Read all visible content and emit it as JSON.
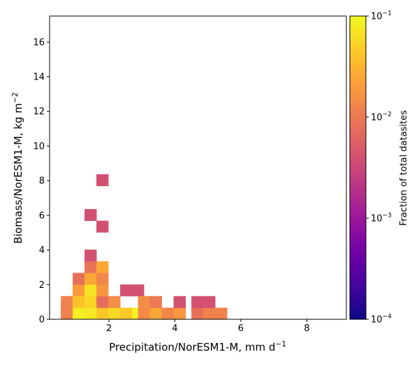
{
  "chart_data": {
    "type": "heatmap",
    "title": "",
    "xlabel": "Precipitation/NorESM1-M,  mm d",
    "xlabel_sup": "−1",
    "ylabel": "Biomass/NorESM1-M,  kg m",
    "ylabel_sup": "−2",
    "xlim": [
      0.2,
      9.2
    ],
    "ylim": [
      0,
      17.5
    ],
    "xticks": [
      2,
      4,
      6,
      8
    ],
    "xtick_labels": [
      "2",
      "4",
      "6",
      "8"
    ],
    "yticks": [
      0,
      2,
      4,
      6,
      8,
      10,
      12,
      14,
      16
    ],
    "ytick_labels": [
      "0",
      "2",
      "4",
      "6",
      "8",
      "10",
      "12",
      "14",
      "16"
    ],
    "grid": false,
    "bin_width_x": 0.36,
    "bin_height_y": 0.67,
    "cells": [
      {
        "x": 0.54,
        "y": 0.0,
        "v": 0.012
      },
      {
        "x": 0.54,
        "y": 0.67,
        "v": 0.012
      },
      {
        "x": 0.9,
        "y": 0.0,
        "v": 0.085
      },
      {
        "x": 0.9,
        "y": 0.67,
        "v": 0.04
      },
      {
        "x": 0.9,
        "y": 1.34,
        "v": 0.02
      },
      {
        "x": 0.9,
        "y": 2.01,
        "v": 0.008
      },
      {
        "x": 1.26,
        "y": 0.0,
        "v": 0.075
      },
      {
        "x": 1.26,
        "y": 0.67,
        "v": 0.055
      },
      {
        "x": 1.26,
        "y": 1.34,
        "v": 0.07
      },
      {
        "x": 1.26,
        "y": 2.01,
        "v": 0.025
      },
      {
        "x": 1.26,
        "y": 2.68,
        "v": 0.009
      },
      {
        "x": 1.26,
        "y": 3.35,
        "v": 0.004
      },
      {
        "x": 1.26,
        "y": 5.69,
        "v": 0.004
      },
      {
        "x": 1.62,
        "y": 0.0,
        "v": 0.045
      },
      {
        "x": 1.62,
        "y": 0.67,
        "v": 0.008
      },
      {
        "x": 1.62,
        "y": 1.34,
        "v": 0.018
      },
      {
        "x": 1.62,
        "y": 2.01,
        "v": 0.013
      },
      {
        "x": 1.62,
        "y": 2.68,
        "v": 0.025
      },
      {
        "x": 1.62,
        "y": 5.02,
        "v": 0.004
      },
      {
        "x": 1.62,
        "y": 7.7,
        "v": 0.004
      },
      {
        "x": 1.98,
        "y": 0.0,
        "v": 0.06
      },
      {
        "x": 1.98,
        "y": 0.67,
        "v": 0.015
      },
      {
        "x": 2.34,
        "y": 0.0,
        "v": 0.045
      },
      {
        "x": 2.34,
        "y": 1.34,
        "v": 0.004
      },
      {
        "x": 2.7,
        "y": 0.0,
        "v": 0.09
      },
      {
        "x": 2.7,
        "y": 1.34,
        "v": 0.004
      },
      {
        "x": 2.88,
        "y": 0.0,
        "v": 0.014
      },
      {
        "x": 2.88,
        "y": 0.67,
        "v": 0.015
      },
      {
        "x": 3.24,
        "y": 0.0,
        "v": 0.025
      },
      {
        "x": 3.24,
        "y": 0.67,
        "v": 0.01
      },
      {
        "x": 3.6,
        "y": 0.0,
        "v": 0.013
      },
      {
        "x": 3.96,
        "y": 0.0,
        "v": 0.018
      },
      {
        "x": 3.96,
        "y": 0.67,
        "v": 0.004
      },
      {
        "x": 4.5,
        "y": 0.0,
        "v": 0.008
      },
      {
        "x": 4.5,
        "y": 0.67,
        "v": 0.004
      },
      {
        "x": 4.86,
        "y": 0.0,
        "v": 0.012
      },
      {
        "x": 4.86,
        "y": 0.67,
        "v": 0.004
      },
      {
        "x": 5.22,
        "y": 0.0,
        "v": 0.012
      }
    ],
    "colorbar": {
      "label": "Fraction of total datasites",
      "scale": "log",
      "min": 0.0001,
      "max": 0.1,
      "ticks": [
        0.0001,
        0.001,
        0.01,
        0.1
      ],
      "tick_base": "10",
      "tick_exps": [
        "−4",
        "−3",
        "−2",
        "−1"
      ],
      "colormap": "plasma"
    }
  }
}
